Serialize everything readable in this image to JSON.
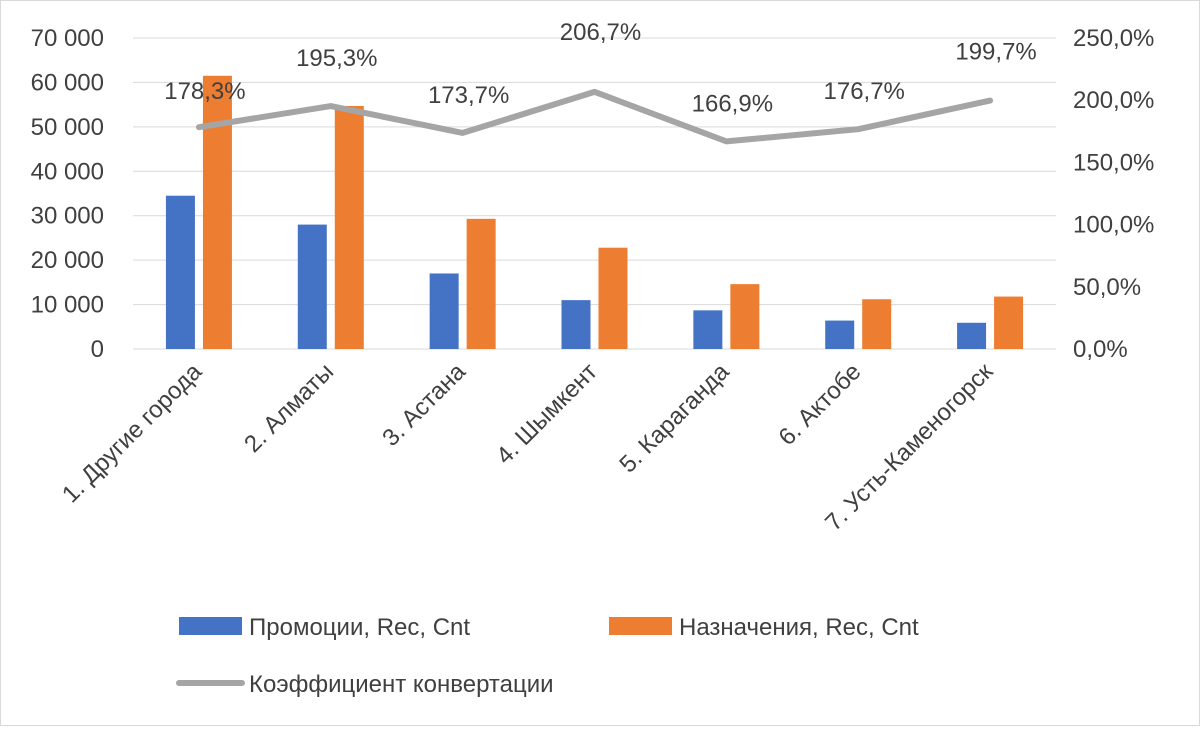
{
  "chart_data": {
    "type": "bar",
    "categories": [
      "1. Другие города",
      "2. Алматы",
      "3. Астана",
      "4. Шымкент",
      "5. Караганда",
      "6. Актобе",
      "7. Усть-Каменогорск"
    ],
    "series": [
      {
        "name": "Промоции, Rec, Cnt",
        "type": "bar",
        "axis": "left",
        "color": "#4472C4",
        "values": [
          34500,
          28000,
          17000,
          11000,
          8700,
          6400,
          5900
        ]
      },
      {
        "name": "Назначения, Rec, Cnt",
        "type": "bar",
        "axis": "left",
        "color": "#ED7D31",
        "values": [
          61500,
          54700,
          29300,
          22800,
          14600,
          11200,
          11800
        ]
      },
      {
        "name": "Коэффициент конвертации",
        "type": "line",
        "axis": "right",
        "color": "#A5A5A5",
        "values": [
          178.3,
          195.3,
          173.7,
          206.7,
          166.9,
          176.7,
          199.7
        ],
        "labels": [
          "178,3%",
          "195,3%",
          "173,7%",
          "206,7%",
          "166,9%",
          "176,7%",
          "199,7%"
        ]
      }
    ],
    "y_left": {
      "min": 0,
      "max": 70000,
      "step": 10000,
      "ticks": [
        "0",
        "10 000",
        "20 000",
        "30 000",
        "40 000",
        "50 000",
        "60 000",
        "70 000"
      ]
    },
    "y_right": {
      "min": 0,
      "max": 250,
      "step": 50,
      "ticks": [
        "0,0%",
        "50,0%",
        "100,0%",
        "150,0%",
        "200,0%",
        "250,0%"
      ]
    },
    "grid": true,
    "gridColor": "#d9d9d9",
    "legend_position": "bottom"
  }
}
